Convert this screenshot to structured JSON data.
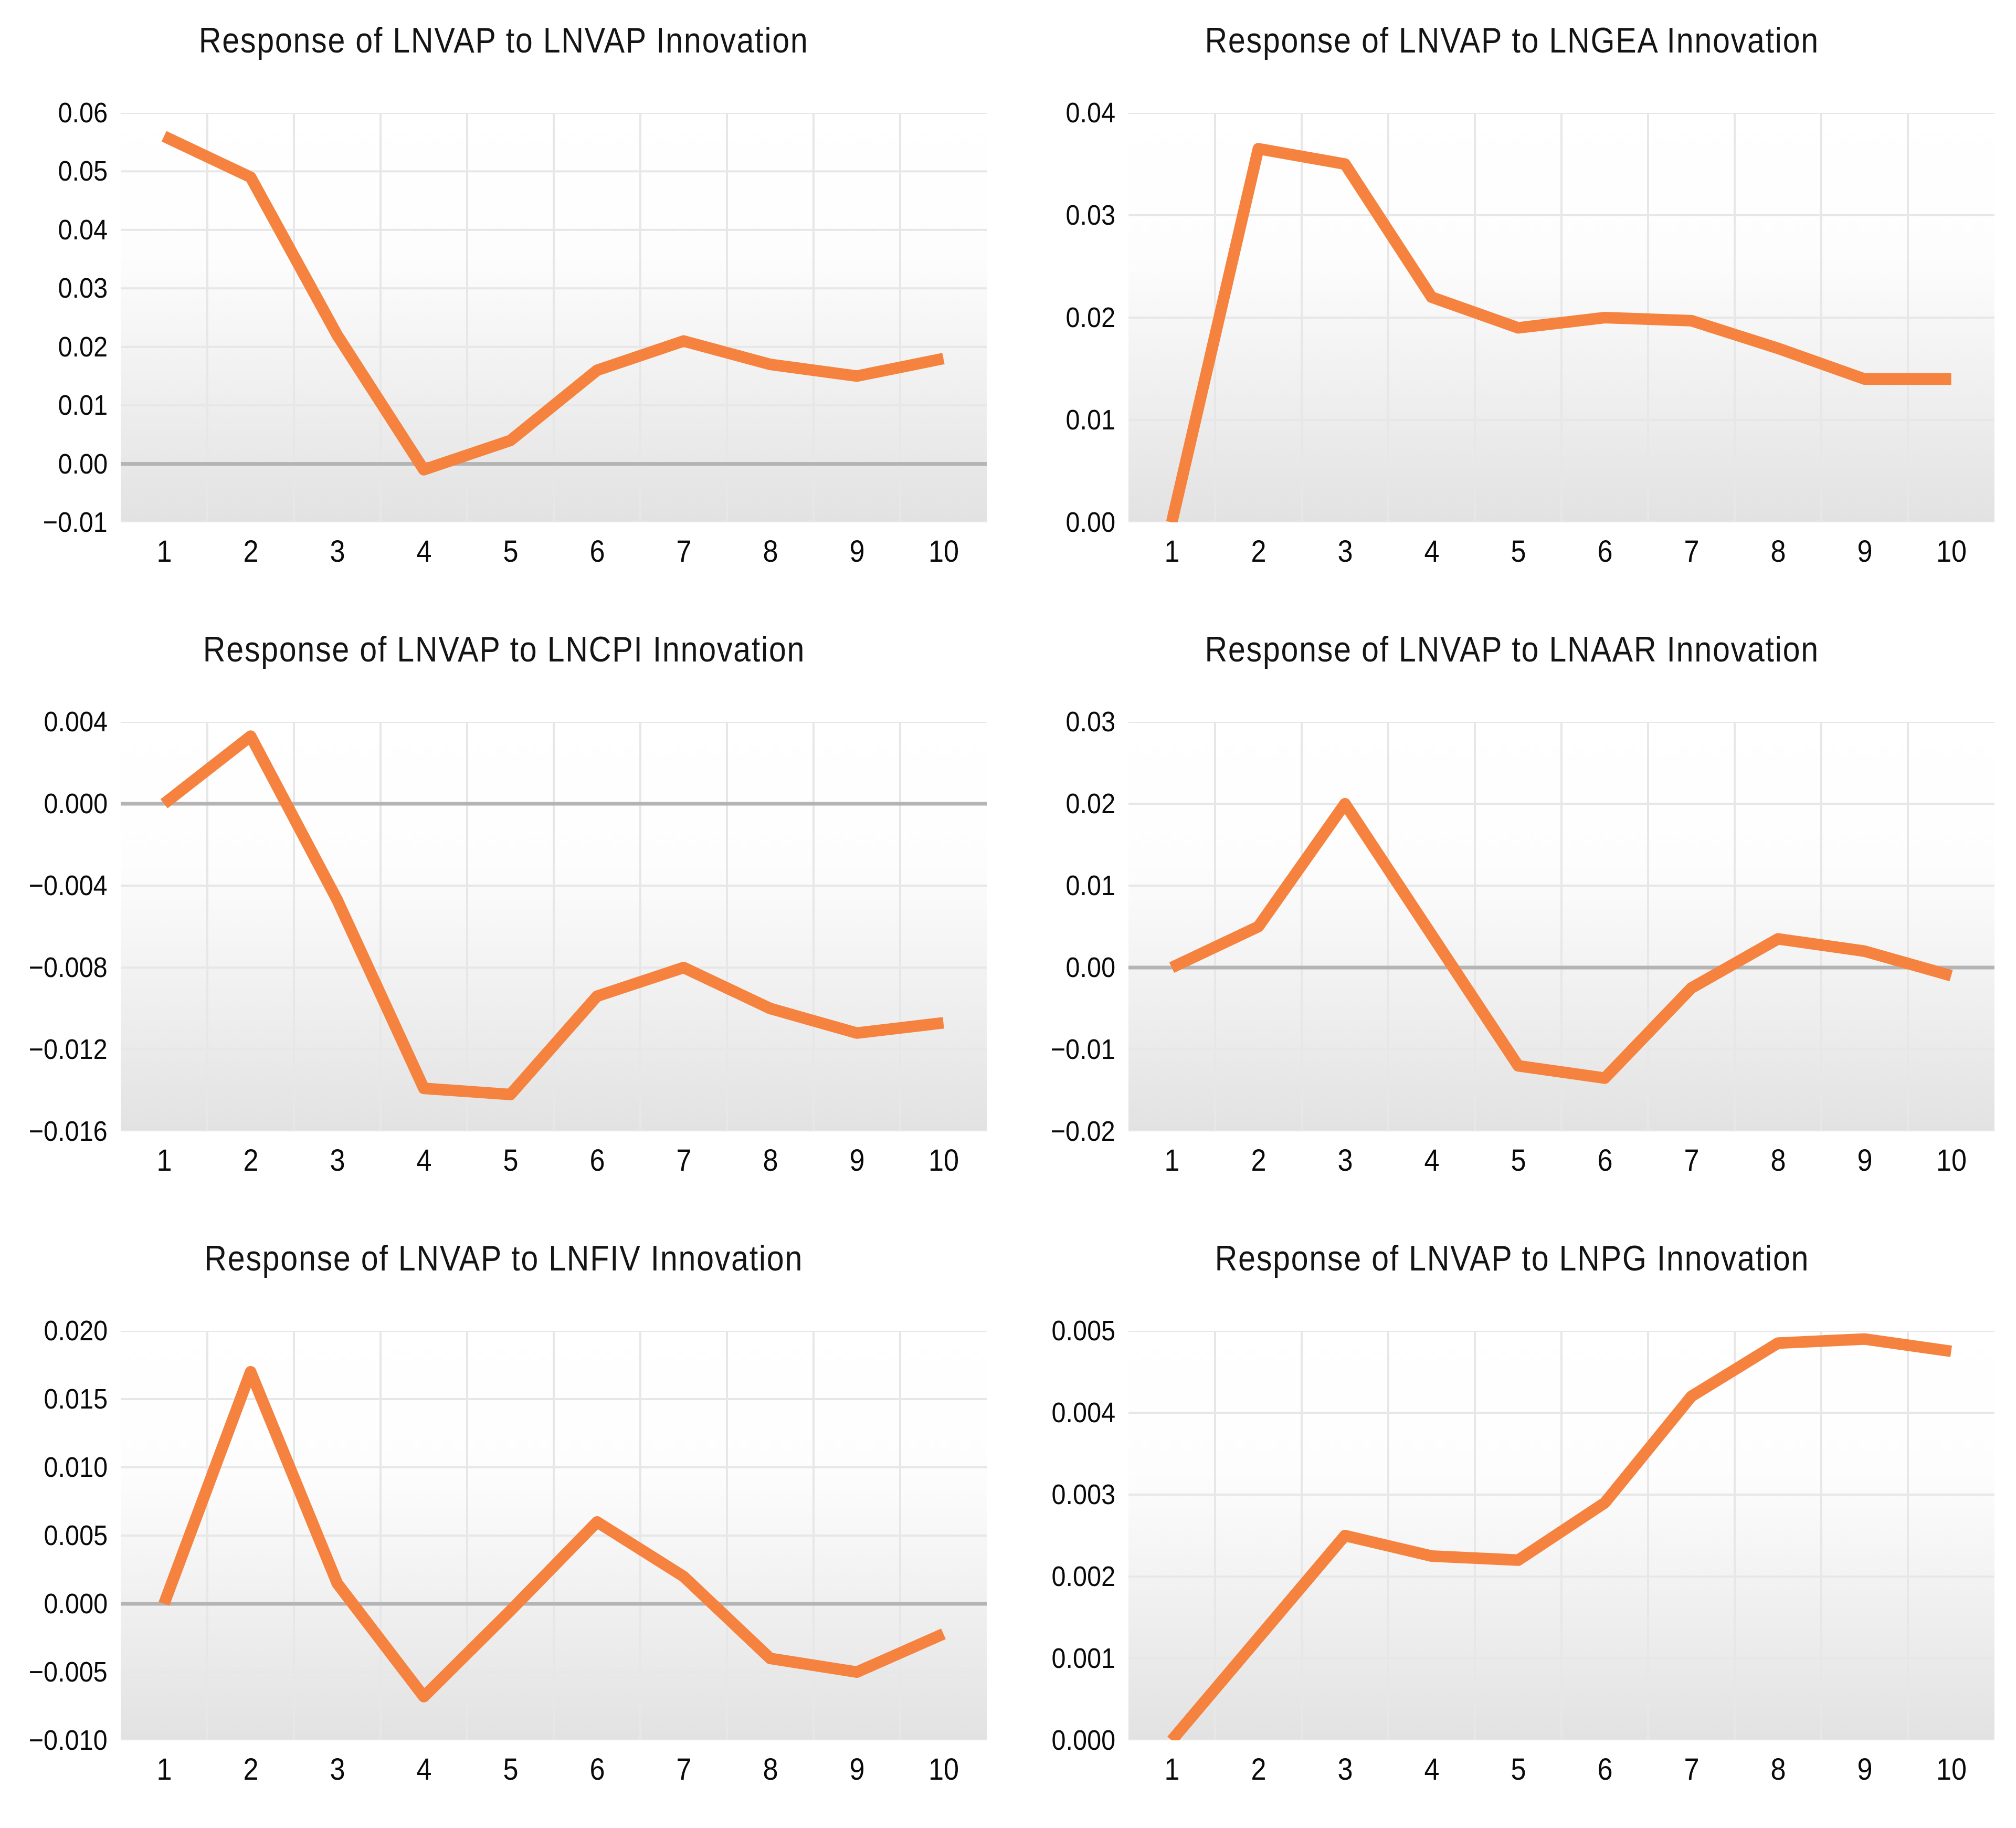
{
  "accent_color": "#F5823E",
  "grid_color": "#e7e7e7",
  "zero_line_color": "#b4b4b4",
  "plot_bg_top": "#ffffff",
  "plot_bg_bottom": "#e2e2e2",
  "chart_data": [
    {
      "type": "line",
      "title": "Response of LNVAP to LNVAP Innovation",
      "x": [
        "1",
        "2",
        "3",
        "4",
        "5",
        "6",
        "7",
        "8",
        "9",
        "10"
      ],
      "values": [
        0.056,
        0.049,
        0.022,
        -0.001,
        0.004,
        0.016,
        0.021,
        0.017,
        0.015,
        0.018
      ],
      "y_ticks": [
        {
          "label": "0.06",
          "value": 0.06
        },
        {
          "label": "0.05",
          "value": 0.05
        },
        {
          "label": "0.04",
          "value": 0.04
        },
        {
          "label": "0.03",
          "value": 0.03
        },
        {
          "label": "0.02",
          "value": 0.02
        },
        {
          "label": "0.01",
          "value": 0.01
        },
        {
          "label": "0.00",
          "value": 0.0
        },
        {
          "label": "−0.01",
          "value": -0.01
        }
      ],
      "ylim": [
        -0.01,
        0.06
      ],
      "xlabel": "",
      "ylabel": "",
      "grid": true,
      "legend": "none"
    },
    {
      "type": "line",
      "title": "Response of LNVAP to LNGEA Innovation",
      "x": [
        "1",
        "2",
        "3",
        "4",
        "5",
        "6",
        "7",
        "8",
        "9",
        "10"
      ],
      "values": [
        0.0,
        0.0365,
        0.035,
        0.022,
        0.019,
        0.02,
        0.0197,
        0.017,
        0.014,
        0.014
      ],
      "y_ticks": [
        {
          "label": "0.04",
          "value": 0.04
        },
        {
          "label": "0.03",
          "value": 0.03
        },
        {
          "label": "0.02",
          "value": 0.02
        },
        {
          "label": "0.01",
          "value": 0.01
        },
        {
          "label": "0.00",
          "value": 0.0
        }
      ],
      "ylim": [
        0.0,
        0.04
      ],
      "xlabel": "",
      "ylabel": "",
      "grid": true,
      "legend": "none"
    },
    {
      "type": "line",
      "title": "Response of LNVAP to LNCPI Innovation",
      "x": [
        "1",
        "2",
        "3",
        "4",
        "5",
        "6",
        "7",
        "8",
        "9",
        "10"
      ],
      "values": [
        0.0,
        0.0033,
        -0.0047,
        -0.0139,
        -0.0142,
        -0.0094,
        -0.008,
        -0.01,
        -0.0112,
        -0.0107
      ],
      "y_ticks": [
        {
          "label": "0.004",
          "value": 0.004
        },
        {
          "label": "0.000",
          "value": 0.0
        },
        {
          "label": "−0.004",
          "value": -0.004
        },
        {
          "label": "−0.008",
          "value": -0.008
        },
        {
          "label": "−0.012",
          "value": -0.012
        },
        {
          "label": "−0.016",
          "value": -0.016
        }
      ],
      "ylim": [
        -0.016,
        0.004
      ],
      "xlabel": "",
      "ylabel": "",
      "grid": true,
      "legend": "none"
    },
    {
      "type": "line",
      "title": "Response of LNVAP to LNAAR Innovation",
      "x": [
        "1",
        "2",
        "3",
        "4",
        "5",
        "6",
        "7",
        "8",
        "9",
        "10"
      ],
      "values": [
        0.0,
        0.005,
        0.02,
        0.004,
        -0.012,
        -0.0135,
        -0.0025,
        0.0035,
        0.002,
        -0.001
      ],
      "y_ticks": [
        {
          "label": "0.03",
          "value": 0.03
        },
        {
          "label": "0.02",
          "value": 0.02
        },
        {
          "label": "0.01",
          "value": 0.01
        },
        {
          "label": "0.00",
          "value": 0.0
        },
        {
          "label": "−0.01",
          "value": -0.01
        },
        {
          "label": "−0.02",
          "value": -0.02
        }
      ],
      "ylim": [
        -0.02,
        0.03
      ],
      "xlabel": "",
      "ylabel": "",
      "grid": true,
      "legend": "none"
    },
    {
      "type": "line",
      "title": "Response of LNVAP to LNFIV Innovation",
      "x": [
        "1",
        "2",
        "3",
        "4",
        "5",
        "6",
        "7",
        "8",
        "9",
        "10"
      ],
      "values": [
        0.0,
        0.017,
        0.0015,
        -0.0068,
        -0.0005,
        0.006,
        0.002,
        -0.004,
        -0.005,
        -0.0022
      ],
      "y_ticks": [
        {
          "label": "0.020",
          "value": 0.02
        },
        {
          "label": "0.015",
          "value": 0.015
        },
        {
          "label": "0.010",
          "value": 0.01
        },
        {
          "label": "0.005",
          "value": 0.005
        },
        {
          "label": "0.000",
          "value": 0.0
        },
        {
          "label": "−0.005",
          "value": -0.005
        },
        {
          "label": "−0.010",
          "value": -0.01
        }
      ],
      "ylim": [
        -0.01,
        0.02
      ],
      "xlabel": "",
      "ylabel": "",
      "grid": true,
      "legend": "none"
    },
    {
      "type": "line",
      "title": "Response of LNVAP to LNPG Innovation",
      "x": [
        "1",
        "2",
        "3",
        "4",
        "5",
        "6",
        "7",
        "8",
        "9",
        "10"
      ],
      "values": [
        0.0,
        0.00125,
        0.0025,
        0.00225,
        0.0022,
        0.0029,
        0.0042,
        0.00485,
        0.0049,
        0.00475
      ],
      "y_ticks": [
        {
          "label": "0.005",
          "value": 0.005
        },
        {
          "label": "0.004",
          "value": 0.004
        },
        {
          "label": "0.003",
          "value": 0.003
        },
        {
          "label": "0.002",
          "value": 0.002
        },
        {
          "label": "0.001",
          "value": 0.001
        },
        {
          "label": "0.000",
          "value": 0.0
        }
      ],
      "ylim": [
        0.0,
        0.005
      ],
      "xlabel": "",
      "ylabel": "",
      "grid": true,
      "legend": "none"
    }
  ]
}
